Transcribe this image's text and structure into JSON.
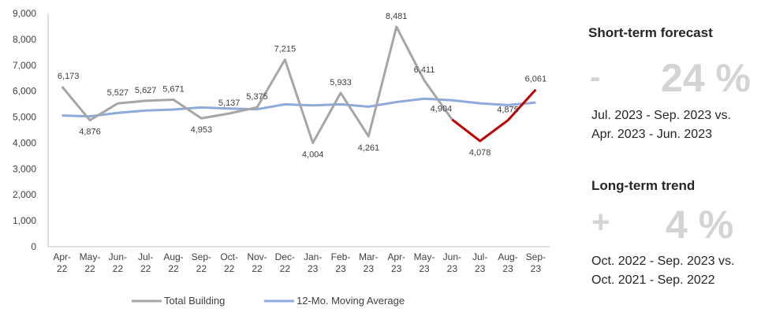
{
  "chart_data": {
    "type": "line",
    "categories": [
      [
        "Apr-",
        "22"
      ],
      [
        "May-",
        "22"
      ],
      [
        "Jun-",
        "22"
      ],
      [
        "Jul-",
        "22"
      ],
      [
        "Aug-",
        "22"
      ],
      [
        "Sep-",
        "22"
      ],
      [
        "Oct-",
        "22"
      ],
      [
        "Nov-",
        "22"
      ],
      [
        "Dec-",
        "22"
      ],
      [
        "Jan-",
        "23"
      ],
      [
        "Feb-",
        "23"
      ],
      [
        "Mar-",
        "23"
      ],
      [
        "Apr-",
        "23"
      ],
      [
        "May-",
        "23"
      ],
      [
        "Jun-",
        "23"
      ],
      [
        "Jul-",
        "23"
      ],
      [
        "Aug-",
        "23"
      ],
      [
        "Sep-",
        "23"
      ]
    ],
    "y_ticks": [
      "0",
      "1,000",
      "2,000",
      "3,000",
      "4,000",
      "5,000",
      "6,000",
      "7,000",
      "8,000",
      "9,000"
    ],
    "ylim": [
      0,
      9000
    ],
    "series": [
      {
        "name": "Total Building",
        "color": "#a6a6a6",
        "values": [
          6173,
          4876,
          5527,
          5627,
          5671,
          4953,
          5137,
          5375,
          7215,
          4004,
          5933,
          4261,
          8481,
          6411,
          4904,
          4078,
          4875,
          6061
        ],
        "labels": [
          "6,173",
          "4,876",
          "5,527",
          "5,627",
          "5,671",
          "4,953",
          "5,137",
          "5,375",
          "7,215",
          "4,004",
          "5,933",
          "4,261",
          "8,481",
          "6,411",
          "4,904",
          "4,078",
          "4,875",
          "6,061"
        ],
        "forecast_from_index": 14,
        "forecast_color": "#c00000"
      },
      {
        "name": "12-Mo. Moving Average",
        "color": "#8eaadb",
        "values": [
          5060,
          5030,
          5160,
          5250,
          5290,
          5370,
          5330,
          5300,
          5490,
          5450,
          5490,
          5400,
          5580,
          5710,
          5650,
          5530,
          5460,
          5560
        ]
      }
    ]
  },
  "panel": {
    "short_term": {
      "heading": "Short-term forecast",
      "sign": "-",
      "value": "24 %",
      "period_line1": "Jul. 2023 - Sep. 2023 vs.",
      "period_line2": "Apr. 2023 - Jun. 2023"
    },
    "long_term": {
      "heading": "Long-term trend",
      "sign": "+",
      "value": "4 %",
      "period_line1": "Oct. 2022 - Sep. 2023 vs.",
      "period_line2": "Oct. 2021 - Sep. 2022"
    }
  }
}
